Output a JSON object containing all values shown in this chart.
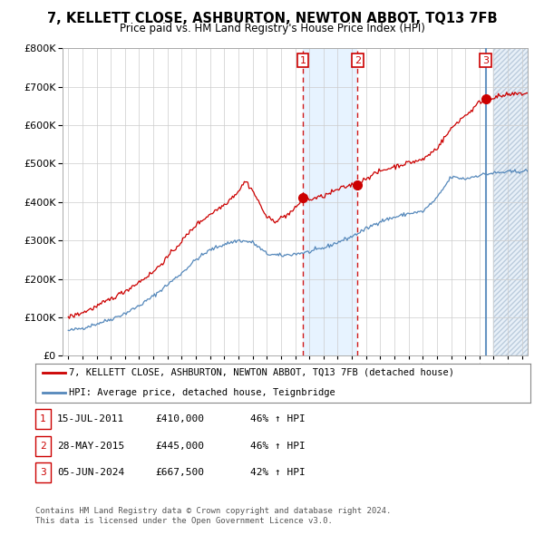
{
  "title": "7, KELLETT CLOSE, ASHBURTON, NEWTON ABBOT, TQ13 7FB",
  "subtitle": "Price paid vs. HM Land Registry's House Price Index (HPI)",
  "ylim": [
    0,
    800000
  ],
  "yticks": [
    0,
    100000,
    200000,
    300000,
    400000,
    500000,
    600000,
    700000,
    800000
  ],
  "ytick_labels": [
    "£0",
    "£100K",
    "£200K",
    "£300K",
    "£400K",
    "£500K",
    "£600K",
    "£700K",
    "£800K"
  ],
  "xlim_start": 1994.6,
  "xlim_end": 2027.4,
  "sale_dates": [
    2011.54,
    2015.41,
    2024.43
  ],
  "sale_labels": [
    "1",
    "2",
    "3"
  ],
  "sale_prices": [
    410000,
    445000,
    667500
  ],
  "legend_label_red": "7, KELLETT CLOSE, ASHBURTON, NEWTON ABBOT, TQ13 7FB (detached house)",
  "legend_label_blue": "HPI: Average price, detached house, Teignbridge",
  "red_color": "#cc0000",
  "blue_color": "#5588bb",
  "table_rows": [
    [
      "1",
      "15-JUL-2011",
      "£410,000",
      "46% ↑ HPI"
    ],
    [
      "2",
      "28-MAY-2015",
      "£445,000",
      "46% ↑ HPI"
    ],
    [
      "3",
      "05-JUN-2024",
      "£667,500",
      "42% ↑ HPI"
    ]
  ],
  "footer_line1": "Contains HM Land Registry data © Crown copyright and database right 2024.",
  "footer_line2": "This data is licensed under the Open Government Licence v3.0.",
  "background_color": "#ffffff",
  "grid_color": "#cccccc",
  "shade_color": "#ddeeff",
  "hatch_color": "#bbccdd",
  "hatch_start": 2025.0
}
